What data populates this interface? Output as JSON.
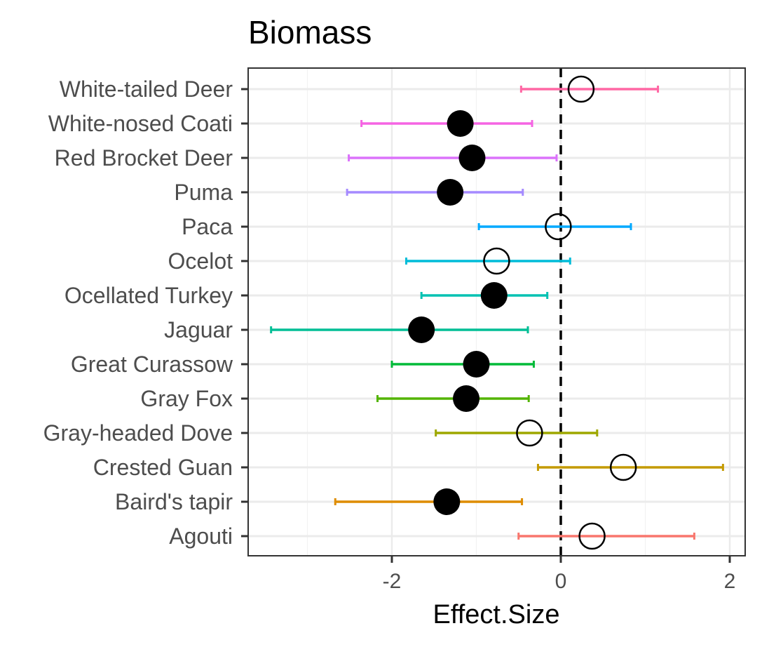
{
  "chart_data": {
    "type": "scatter",
    "subtype": "forest-plot",
    "title": "Biomass",
    "xlabel": "Effect.Size",
    "ylabel": "",
    "xlim": [
      -3.7,
      2.2
    ],
    "xticks": [
      -2,
      0,
      2
    ],
    "xtick_labels": [
      "-2",
      "0",
      "2"
    ],
    "reference_line": {
      "x": 0,
      "style": "dashed"
    },
    "grid": true,
    "legend": "none",
    "species": [
      {
        "name": "White-tailed Deer",
        "estimate": 0.24,
        "lower": -0.47,
        "upper": 1.15,
        "filled": false,
        "color": "#FF67A4"
      },
      {
        "name": "White-nosed Coati",
        "estimate": -1.19,
        "lower": -2.36,
        "upper": -0.34,
        "filled": true,
        "color": "#F564E3"
      },
      {
        "name": "Red Brocket Deer",
        "estimate": -1.05,
        "lower": -2.51,
        "upper": -0.05,
        "filled": true,
        "color": "#DB72FB"
      },
      {
        "name": "Puma",
        "estimate": -1.31,
        "lower": -2.53,
        "upper": -0.45,
        "filled": true,
        "color": "#A58AFF"
      },
      {
        "name": "Paca",
        "estimate": -0.03,
        "lower": -0.97,
        "upper": 0.83,
        "filled": false,
        "color": "#00A9FF"
      },
      {
        "name": "Ocelot",
        "estimate": -0.76,
        "lower": -1.83,
        "upper": 0.11,
        "filled": false,
        "color": "#00BCD8"
      },
      {
        "name": "Ocellated Turkey",
        "estimate": -0.79,
        "lower": -1.65,
        "upper": -0.16,
        "filled": true,
        "color": "#00C1B2"
      },
      {
        "name": "Jaguar",
        "estimate": -1.65,
        "lower": -3.43,
        "upper": -0.39,
        "filled": true,
        "color": "#00BE95"
      },
      {
        "name": "Great Curassow",
        "estimate": -1.0,
        "lower": -2.0,
        "upper": -0.32,
        "filled": true,
        "color": "#00BA38"
      },
      {
        "name": "Gray Fox",
        "estimate": -1.12,
        "lower": -2.17,
        "upper": -0.38,
        "filled": true,
        "color": "#53B400"
      },
      {
        "name": "Gray-headed Dove",
        "estimate": -0.37,
        "lower": -1.48,
        "upper": 0.43,
        "filled": false,
        "color": "#9DA700"
      },
      {
        "name": "Crested Guan",
        "estimate": 0.74,
        "lower": -0.27,
        "upper": 1.92,
        "filled": false,
        "color": "#C49A00"
      },
      {
        "name": "Baird's tapir",
        "estimate": -1.35,
        "lower": -2.67,
        "upper": -0.46,
        "filled": true,
        "color": "#DE8C00"
      },
      {
        "name": "Agouti",
        "estimate": 0.37,
        "lower": -0.5,
        "upper": 1.58,
        "filled": false,
        "color": "#F8766D"
      }
    ]
  }
}
